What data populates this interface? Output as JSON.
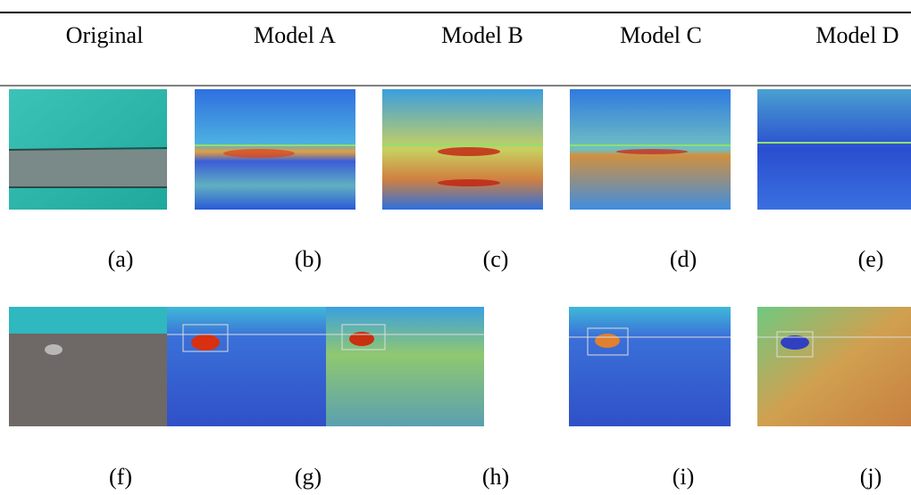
{
  "header": {
    "columns": [
      "Original",
      "Model A",
      "Model B",
      "Model C",
      "Model D"
    ]
  },
  "captions": [
    "(a)",
    "(b)",
    "(c)",
    "(d)",
    "(e)",
    "(f)",
    "(g)",
    "(h)",
    "(i)",
    "(j)"
  ]
}
